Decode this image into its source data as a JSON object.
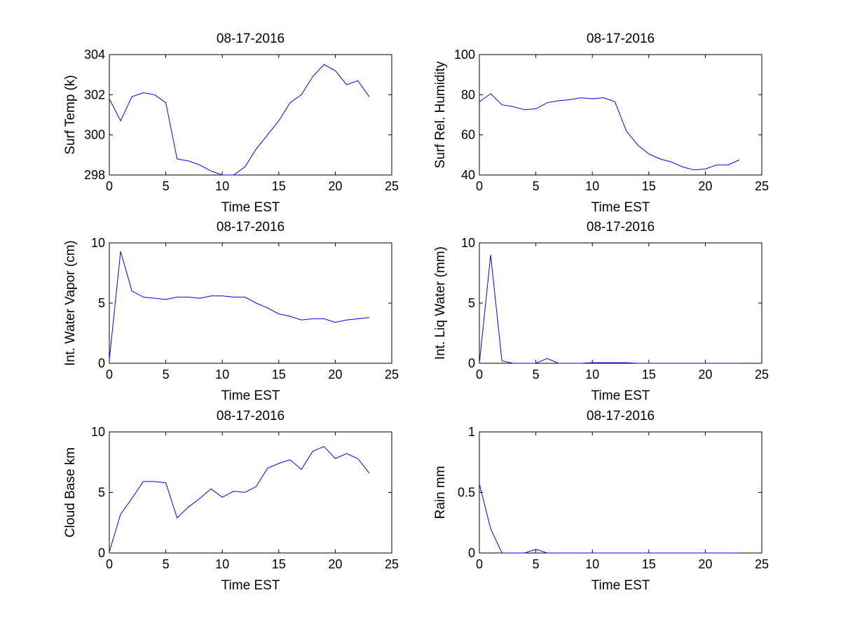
{
  "colors": {
    "line": "#0000ff",
    "axis": "#000000",
    "background": "#ffffff"
  },
  "chart_data": [
    {
      "type": "line",
      "title": "08-17-2016",
      "xlabel": "Time EST",
      "ylabel": "Surf Temp (k)",
      "xlim": [
        0,
        25
      ],
      "ylim": [
        298,
        304
      ],
      "xticks": [
        0,
        5,
        10,
        15,
        20,
        25
      ],
      "yticks": [
        298,
        300,
        302,
        304
      ],
      "xtick_labels": [
        "0",
        "5",
        "10",
        "15",
        "20",
        "25"
      ],
      "ytick_labels": [
        "298",
        "300",
        "302",
        "304"
      ],
      "x": [
        0,
        1,
        2,
        3,
        4,
        5,
        6,
        7,
        8,
        9,
        10,
        11,
        12,
        13,
        14,
        15,
        16,
        17,
        18,
        19,
        20,
        21,
        22,
        23
      ],
      "values": [
        301.8,
        300.7,
        301.9,
        302.1,
        302.0,
        301.6,
        298.8,
        298.7,
        298.5,
        298.2,
        298.0,
        298.0,
        298.4,
        299.3,
        300.0,
        300.7,
        301.6,
        302.0,
        302.9,
        303.5,
        303.2,
        302.5,
        302.7,
        301.9
      ]
    },
    {
      "type": "line",
      "title": "08-17-2016",
      "xlabel": "Time EST",
      "ylabel": "Surf Rel. Humidity",
      "xlim": [
        0,
        25
      ],
      "ylim": [
        40,
        100
      ],
      "xticks": [
        0,
        5,
        10,
        15,
        20,
        25
      ],
      "yticks": [
        40,
        60,
        80,
        100
      ],
      "xtick_labels": [
        "0",
        "5",
        "10",
        "15",
        "20",
        "25"
      ],
      "ytick_labels": [
        "40",
        "60",
        "80",
        "100"
      ],
      "x": [
        0,
        1,
        2,
        3,
        4,
        5,
        6,
        7,
        8,
        9,
        10,
        11,
        12,
        13,
        14,
        15,
        16,
        17,
        18,
        19,
        20,
        21,
        22,
        23
      ],
      "values": [
        76.5,
        80.5,
        75.0,
        74.0,
        72.5,
        73.0,
        76.0,
        77.0,
        77.5,
        78.5,
        78.0,
        78.5,
        76.5,
        62.0,
        55.0,
        50.5,
        48.0,
        46.5,
        44.0,
        42.5,
        43.0,
        45.0,
        45.0,
        47.5
      ]
    },
    {
      "type": "line",
      "title": "08-17-2016",
      "xlabel": "Time EST",
      "ylabel": "Int. Water Vapor (cm)",
      "xlim": [
        0,
        25
      ],
      "ylim": [
        0,
        10
      ],
      "xticks": [
        0,
        5,
        10,
        15,
        20,
        25
      ],
      "yticks": [
        0,
        5,
        10
      ],
      "xtick_labels": [
        "0",
        "5",
        "10",
        "15",
        "20",
        "25"
      ],
      "ytick_labels": [
        "0",
        "5",
        "10"
      ],
      "x": [
        0,
        1,
        2,
        3,
        4,
        5,
        6,
        7,
        8,
        9,
        10,
        11,
        12,
        13,
        14,
        15,
        16,
        17,
        18,
        19,
        20,
        21,
        22,
        23
      ],
      "values": [
        0.3,
        9.3,
        6.0,
        5.5,
        5.4,
        5.3,
        5.5,
        5.5,
        5.4,
        5.6,
        5.6,
        5.5,
        5.5,
        5.0,
        4.6,
        4.1,
        3.9,
        3.6,
        3.7,
        3.7,
        3.4,
        3.6,
        3.7,
        3.8
      ]
    },
    {
      "type": "line",
      "title": "08-17-2016",
      "xlabel": "Time EST",
      "ylabel": "Int. Liq Water (mm)",
      "xlim": [
        0,
        25
      ],
      "ylim": [
        0,
        10
      ],
      "xticks": [
        0,
        5,
        10,
        15,
        20,
        25
      ],
      "yticks": [
        0,
        5,
        10
      ],
      "xtick_labels": [
        "0",
        "5",
        "10",
        "15",
        "20",
        "25"
      ],
      "ytick_labels": [
        "0",
        "5",
        "10"
      ],
      "x": [
        0,
        1,
        2,
        3,
        4,
        5,
        6,
        7,
        8,
        9,
        10,
        11,
        12,
        13,
        14,
        15,
        16,
        17,
        18,
        19,
        20,
        21,
        22,
        23
      ],
      "values": [
        0.0,
        9.0,
        0.2,
        0.0,
        0.0,
        0.0,
        0.4,
        0.0,
        0.0,
        0.0,
        0.05,
        0.05,
        0.05,
        0.05,
        0.0,
        0.0,
        0.0,
        0.0,
        0.0,
        0.0,
        0.0,
        0.0,
        0.0,
        0.0
      ]
    },
    {
      "type": "line",
      "title": "08-17-2016",
      "xlabel": "Time EST",
      "ylabel": "Cloud Base km",
      "xlim": [
        0,
        25
      ],
      "ylim": [
        0,
        10
      ],
      "xticks": [
        0,
        5,
        10,
        15,
        20,
        25
      ],
      "yticks": [
        0,
        5,
        10
      ],
      "xtick_labels": [
        "0",
        "5",
        "10",
        "15",
        "20",
        "25"
      ],
      "ytick_labels": [
        "0",
        "5",
        "10"
      ],
      "x": [
        0,
        1,
        2,
        3,
        4,
        5,
        6,
        7,
        8,
        9,
        10,
        11,
        12,
        13,
        14,
        15,
        16,
        17,
        18,
        19,
        20,
        21,
        22,
        23
      ],
      "values": [
        0.1,
        3.2,
        4.5,
        5.9,
        5.9,
        5.8,
        2.9,
        3.8,
        4.5,
        5.3,
        4.6,
        5.1,
        5.0,
        5.5,
        7.0,
        7.4,
        7.7,
        6.9,
        8.4,
        8.8,
        7.8,
        8.2,
        7.8,
        6.6
      ]
    },
    {
      "type": "line",
      "title": "08-17-2016",
      "xlabel": "Time EST",
      "ylabel": "Rain mm",
      "xlim": [
        0,
        25
      ],
      "ylim": [
        0,
        1
      ],
      "xticks": [
        0,
        5,
        10,
        15,
        20,
        25
      ],
      "yticks": [
        0,
        0.5,
        1
      ],
      "xtick_labels": [
        "0",
        "5",
        "10",
        "15",
        "20",
        "25"
      ],
      "ytick_labels": [
        "0",
        "0.5",
        "1"
      ],
      "x": [
        0,
        1,
        2,
        3,
        4,
        5,
        6,
        7,
        8,
        9,
        10,
        11,
        12,
        13,
        14,
        15,
        16,
        17,
        18,
        19,
        20,
        21,
        22,
        23
      ],
      "values": [
        0.57,
        0.2,
        0.0,
        0.0,
        0.0,
        0.03,
        0.0,
        0.0,
        0.0,
        0.0,
        0.0,
        0.0,
        0.0,
        0.0,
        0.0,
        0.0,
        0.0,
        0.0,
        0.0,
        0.0,
        0.0,
        0.0,
        0.0,
        0.0
      ]
    }
  ]
}
